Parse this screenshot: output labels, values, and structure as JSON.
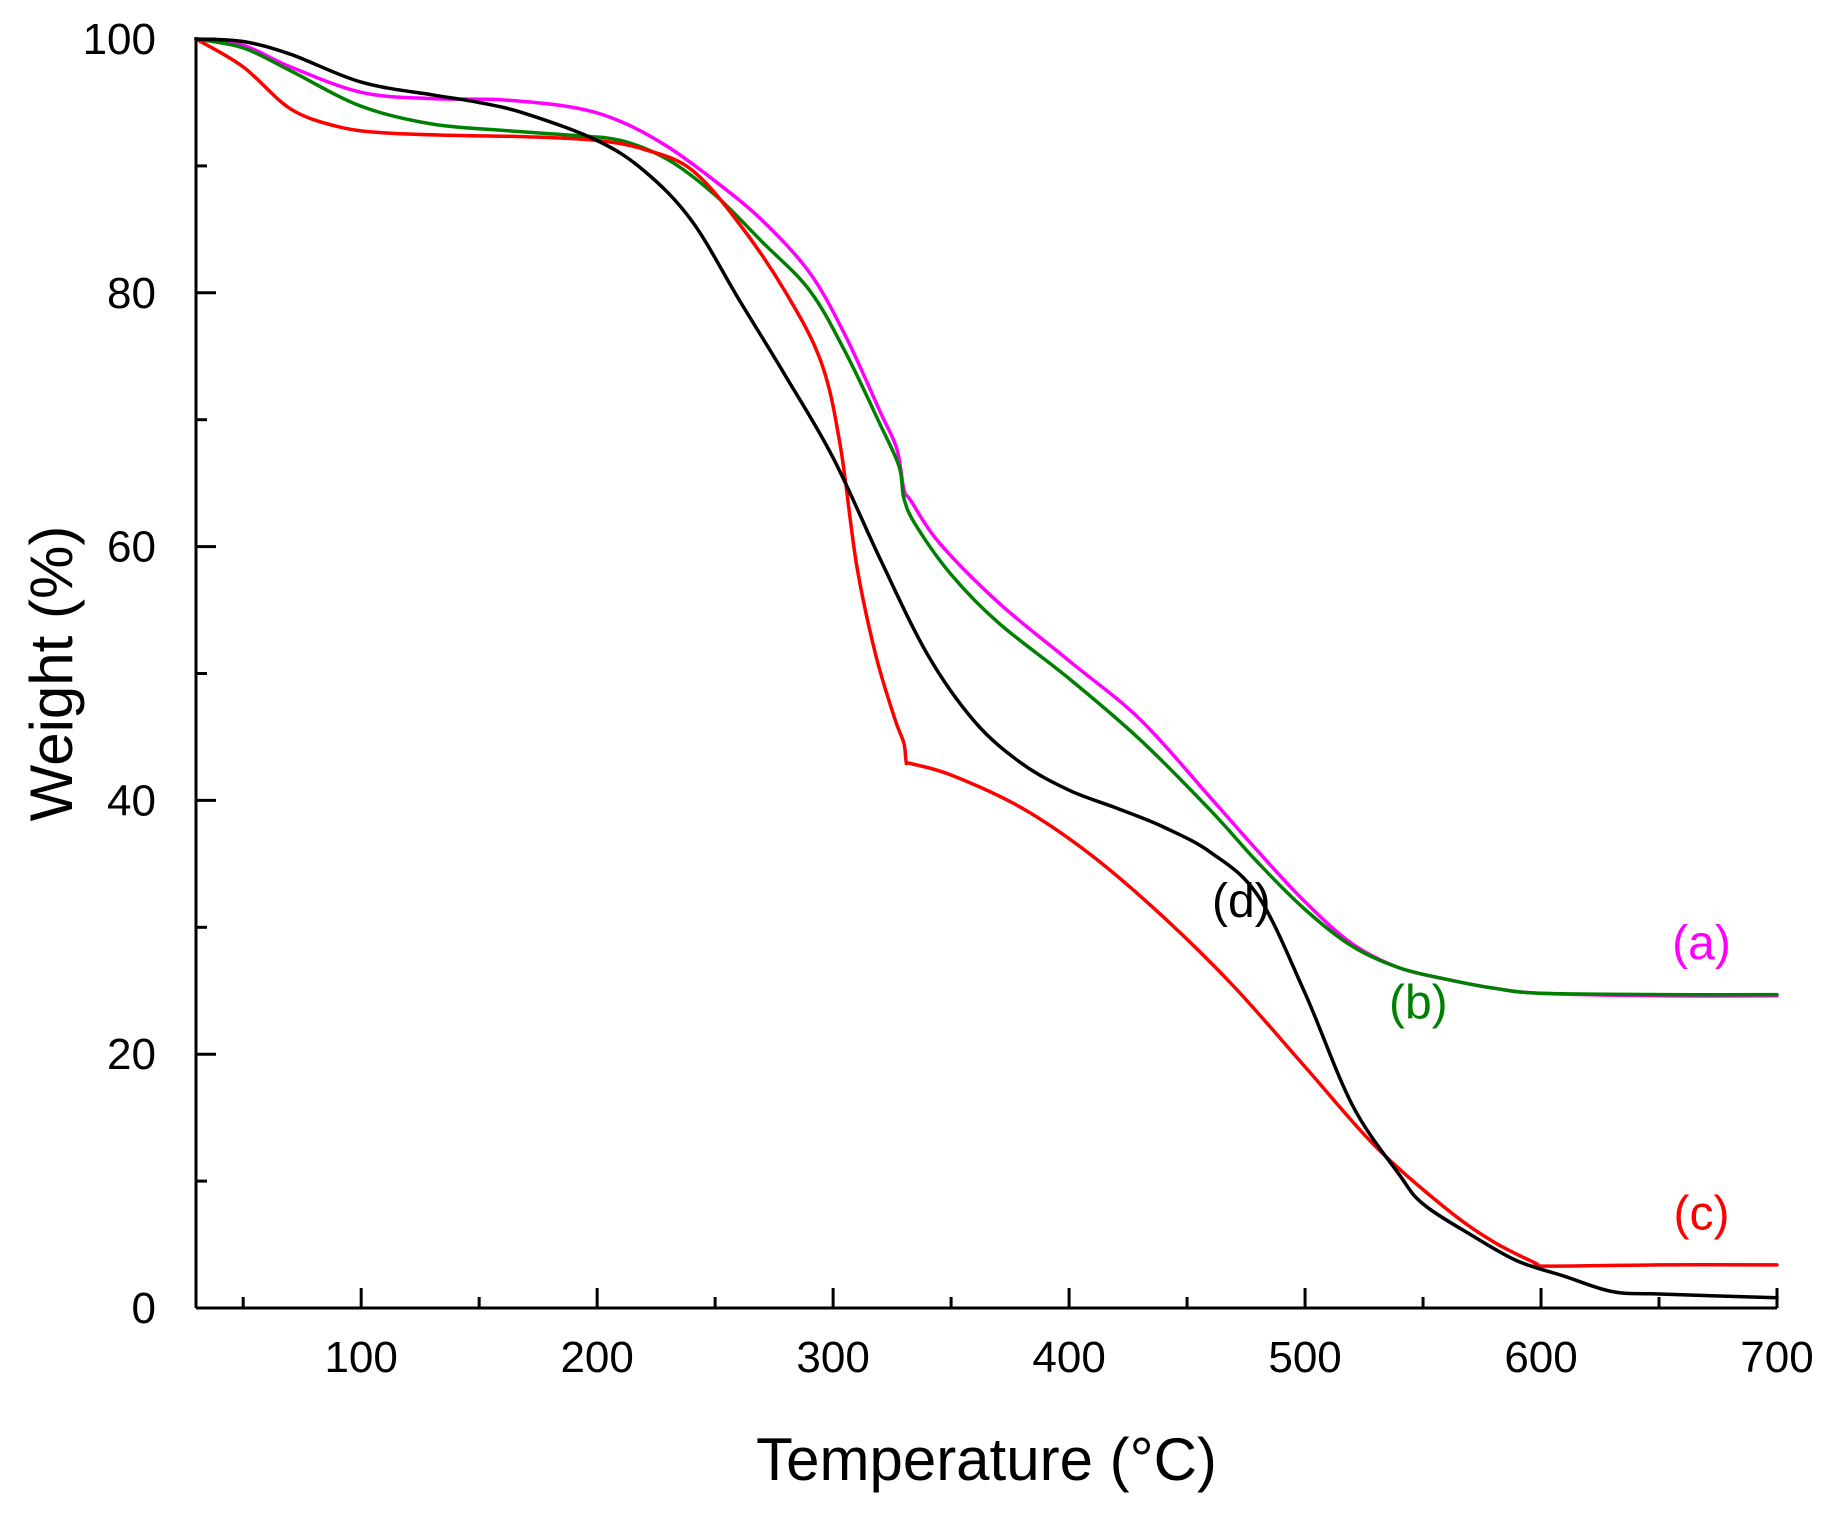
{
  "chart_data": {
    "type": "line",
    "title": "",
    "xlabel": "Temperature (°C)",
    "ylabel": "Weight (%)",
    "xlim": [
      30,
      700
    ],
    "ylim": [
      0,
      100
    ],
    "x_ticks": [
      100,
      200,
      300,
      400,
      500,
      600,
      700
    ],
    "x_tick_labels": [
      "100",
      "200",
      "300",
      "400",
      "500",
      "600",
      "700"
    ],
    "y_ticks": [
      0,
      20,
      40,
      60,
      80,
      100
    ],
    "y_tick_labels": [
      "0",
      "20",
      "40",
      "60",
      "80",
      "100"
    ],
    "grid": false,
    "legend": "none",
    "series": [
      {
        "name": "(a)",
        "color": "#ff00ff",
        "x": [
          30,
          50,
          70,
          100,
          130,
          160,
          190,
          210,
          230,
          250,
          270,
          290,
          305,
          320,
          327,
          330,
          333,
          345,
          370,
          400,
          430,
          460,
          480,
          500,
          520,
          540,
          560,
          580,
          600,
          650,
          700
        ],
        "y": [
          100,
          99.5,
          97.8,
          95.8,
          95.3,
          95.2,
          94.6,
          93.5,
          91.5,
          88.8,
          85.7,
          81.6,
          76.7,
          70.6,
          67.7,
          64.5,
          63.6,
          60.3,
          55.6,
          51.0,
          46.4,
          40.2,
          36.0,
          32.0,
          28.7,
          26.8,
          25.9,
          25.2,
          24.8,
          24.6,
          24.6
        ]
      },
      {
        "name": "(b)",
        "color": "#008000",
        "x": [
          30,
          50,
          70,
          100,
          130,
          160,
          190,
          210,
          230,
          250,
          270,
          290,
          305,
          320,
          328,
          330,
          335,
          350,
          370,
          400,
          430,
          460,
          480,
          500,
          520,
          540,
          560,
          580,
          600,
          650,
          700
        ],
        "y": [
          100,
          99.3,
          97.5,
          94.7,
          93.3,
          92.8,
          92.4,
          92.0,
          90.5,
          87.7,
          84.0,
          80.2,
          75.4,
          69.6,
          66.3,
          63.8,
          61.7,
          57.8,
          54.0,
          49.6,
          44.8,
          39.2,
          35.1,
          31.4,
          28.5,
          26.8,
          25.9,
          25.2,
          24.8,
          24.7,
          24.7
        ]
      },
      {
        "name": "(c)",
        "color": "#ff0000",
        "x": [
          30,
          50,
          70,
          90,
          110,
          140,
          170,
          200,
          220,
          240,
          260,
          280,
          295,
          303,
          310,
          318,
          326,
          330,
          331,
          333,
          350,
          380,
          410,
          440,
          470,
          500,
          530,
          560,
          580,
          598,
          600,
          650,
          700
        ],
        "y": [
          100,
          97.8,
          94.5,
          93.1,
          92.6,
          92.4,
          92.3,
          92.0,
          91.3,
          89.7,
          85.5,
          80.0,
          74.5,
          68.0,
          58.5,
          51.5,
          46.5,
          44.5,
          43.0,
          42.9,
          42.0,
          39.4,
          35.6,
          30.8,
          25.3,
          19.0,
          12.7,
          7.8,
          5.2,
          3.5,
          3.3,
          3.4,
          3.4
        ]
      },
      {
        "name": "(d)",
        "color": "#000000",
        "x": [
          30,
          50,
          70,
          100,
          130,
          150,
          170,
          200,
          220,
          240,
          260,
          280,
          300,
          320,
          340,
          360,
          380,
          400,
          420,
          440,
          460,
          480,
          500,
          520,
          540,
          550,
          570,
          590,
          610,
          630,
          650,
          700
        ],
        "y": [
          100,
          99.8,
          98.8,
          96.6,
          95.6,
          95.0,
          94.1,
          92.0,
          89.6,
          85.7,
          79.5,
          73.4,
          67.0,
          59.0,
          51.5,
          46.2,
          42.9,
          40.8,
          39.4,
          37.9,
          35.9,
          32.5,
          24.8,
          16.0,
          10.5,
          8.2,
          5.8,
          3.7,
          2.5,
          1.3,
          1.1,
          0.8
        ]
      }
    ],
    "annotations": [
      {
        "text": "(a)",
        "color": "#ff00ff",
        "x": 668,
        "y": 27.5
      },
      {
        "text": "(b)",
        "color": "#008000",
        "x": 548,
        "y": 22.8
      },
      {
        "text": "(c)",
        "color": "#ff0000",
        "x": 668,
        "y": 6.2
      },
      {
        "text": "(d)",
        "color": "#000000",
        "x": 473,
        "y": 30.8
      }
    ]
  }
}
